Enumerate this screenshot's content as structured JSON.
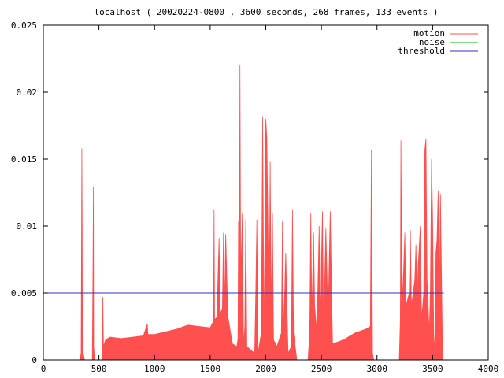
{
  "chart_data": {
    "type": "area",
    "title": "localhost ( 20020224-0800 , 3600 seconds, 268 frames, 133 events )",
    "xlabel": "",
    "ylabel": "",
    "xlim": [
      0,
      4000
    ],
    "ylim": [
      0,
      0.025
    ],
    "x_ticks": [
      "0",
      "500",
      "1000",
      "1500",
      "2000",
      "2500",
      "3000",
      "3500",
      "4000"
    ],
    "y_ticks": [
      "0",
      "0.005",
      "0.01",
      "0.015",
      "0.02",
      "0.025"
    ],
    "grid": false,
    "legend_position": "top-right",
    "series": [
      {
        "name": "motion",
        "color": "#ff5050",
        "points": [
          [
            0,
            0
          ],
          [
            330,
            0
          ],
          [
            340,
            0.0005
          ],
          [
            346,
            0.0158
          ],
          [
            349,
            0.0105
          ],
          [
            352,
            0.002
          ],
          [
            355,
            0.005
          ],
          [
            358,
            0.0005
          ],
          [
            370,
            0
          ],
          [
            440,
            0
          ],
          [
            446,
            0.0065
          ],
          [
            450,
            0.0129
          ],
          [
            453,
            0.001
          ],
          [
            460,
            0
          ],
          [
            530,
            0
          ],
          [
            535,
            0.0047
          ],
          [
            540,
            0.001
          ],
          [
            560,
            0.0015
          ],
          [
            600,
            0.0017
          ],
          [
            700,
            0.0016
          ],
          [
            800,
            0.0017
          ],
          [
            900,
            0.0018
          ],
          [
            935,
            0.0027
          ],
          [
            940,
            0.0019
          ],
          [
            1000,
            0.0019
          ],
          [
            1100,
            0.0021
          ],
          [
            1200,
            0.0023
          ],
          [
            1300,
            0.0026
          ],
          [
            1400,
            0.0025
          ],
          [
            1500,
            0.0024
          ],
          [
            1530,
            0.0029
          ],
          [
            1535,
            0.0112
          ],
          [
            1540,
            0.003
          ],
          [
            1560,
            0.0032
          ],
          [
            1580,
            0.0091
          ],
          [
            1590,
            0.0035
          ],
          [
            1610,
            0.0038
          ],
          [
            1620,
            0.0095
          ],
          [
            1630,
            0.004
          ],
          [
            1640,
            0.0094
          ],
          [
            1650,
            0.006
          ],
          [
            1660,
            0.0032
          ],
          [
            1700,
            0.0012
          ],
          [
            1740,
            0.001
          ],
          [
            1750,
            0.0016
          ],
          [
            1755,
            0.0104
          ],
          [
            1762,
            0.003
          ],
          [
            1768,
            0.022
          ],
          [
            1775,
            0.006
          ],
          [
            1790,
            0.011
          ],
          [
            1800,
            0.001
          ],
          [
            1812,
            0.0025
          ],
          [
            1820,
            0.0105
          ],
          [
            1830,
            0.001
          ],
          [
            1900,
            0.0005
          ],
          [
            1910,
            0.005
          ],
          [
            1920,
            0.0105
          ],
          [
            1930,
            0.0005
          ],
          [
            1960,
            0.002
          ],
          [
            1972,
            0.0182
          ],
          [
            1985,
            0.001
          ],
          [
            2000,
            0.018
          ],
          [
            2010,
            0.0165
          ],
          [
            2020,
            0.01
          ],
          [
            2030,
            0.002
          ],
          [
            2040,
            0.0148
          ],
          [
            2050,
            0.003
          ],
          [
            2060,
            0.011
          ],
          [
            2070,
            0.0015
          ],
          [
            2100,
            0.001
          ],
          [
            2140,
            0.002
          ],
          [
            2150,
            0.0104
          ],
          [
            2160,
            0.002
          ],
          [
            2180,
            0.008
          ],
          [
            2200,
            0.0005
          ],
          [
            2230,
            0.001
          ],
          [
            2240,
            0.0112
          ],
          [
            2250,
            0.002
          ],
          [
            2280,
            0
          ],
          [
            2380,
            0
          ],
          [
            2395,
            0.002
          ],
          [
            2405,
            0.011
          ],
          [
            2415,
            0.003
          ],
          [
            2430,
            0.0095
          ],
          [
            2440,
            0.004
          ],
          [
            2460,
            0.002
          ],
          [
            2480,
            0.01
          ],
          [
            2490,
            0.003
          ],
          [
            2510,
            0.0111
          ],
          [
            2520,
            0.002
          ],
          [
            2540,
            0.0098
          ],
          [
            2560,
            0.003
          ],
          [
            2580,
            0.0111
          ],
          [
            2600,
            0.0012
          ],
          [
            2700,
            0.0015
          ],
          [
            2800,
            0.002
          ],
          [
            2900,
            0.0023
          ],
          [
            2940,
            0.0025
          ],
          [
            2950,
            0.0157
          ],
          [
            2960,
            0.0005
          ],
          [
            2970,
            0
          ],
          [
            3200,
            0
          ],
          [
            3210,
            0.003
          ],
          [
            3215,
            0.0164
          ],
          [
            3225,
            0.004
          ],
          [
            3240,
            0.007
          ],
          [
            3250,
            0.0095
          ],
          [
            3260,
            0.004
          ],
          [
            3290,
            0.005
          ],
          [
            3300,
            0.0097
          ],
          [
            3310,
            0.004
          ],
          [
            3340,
            0.006
          ],
          [
            3350,
            0.0086
          ],
          [
            3360,
            0.004
          ],
          [
            3370,
            0.007
          ],
          [
            3390,
            0.01
          ],
          [
            3400,
            0.003
          ],
          [
            3420,
            0.005
          ],
          [
            3430,
            0.0157
          ],
          [
            3440,
            0.0165
          ],
          [
            3450,
            0.006
          ],
          [
            3470,
            0.002
          ],
          [
            3480,
            0.005
          ],
          [
            3490,
            0.015
          ],
          [
            3500,
            0.0105
          ],
          [
            3510,
            0.002
          ],
          [
            3520,
            0.0005
          ],
          [
            3530,
            0.008
          ],
          [
            3540,
            0.009
          ],
          [
            3550,
            0.0126
          ],
          [
            3560,
            0.004
          ],
          [
            3570,
            0.0124
          ],
          [
            3580,
            0.006
          ],
          [
            3590,
            0
          ]
        ]
      },
      {
        "name": "noise",
        "color": "#00c000",
        "points": []
      },
      {
        "name": "threshold",
        "color": "#3030c0",
        "points": [
          [
            0,
            0.005
          ],
          [
            3600,
            0.005
          ]
        ]
      }
    ]
  }
}
